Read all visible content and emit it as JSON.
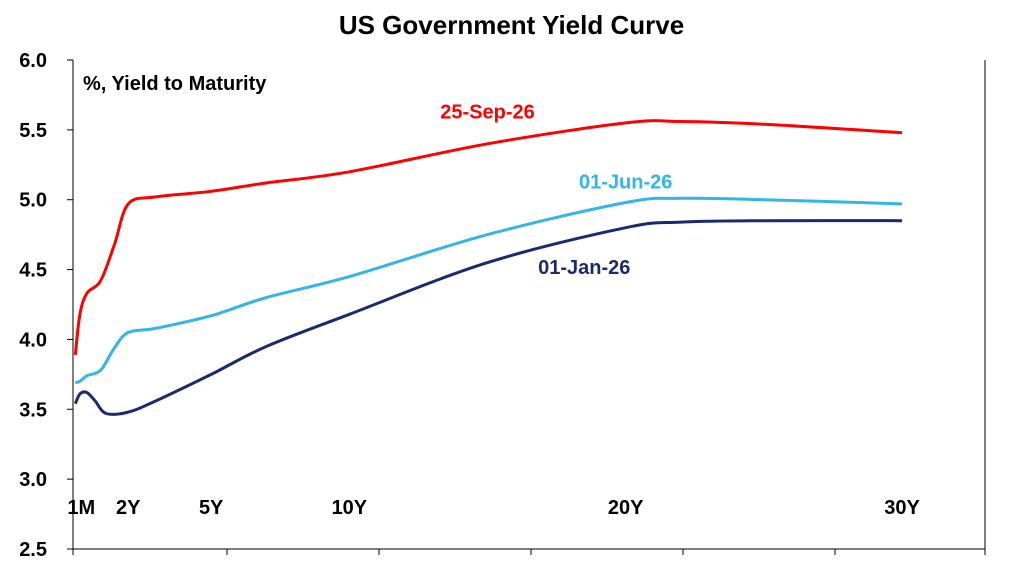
{
  "chart_data": {
    "type": "line",
    "title": "US Government Yield Curve",
    "ylabel": "%, Yield to Maturity",
    "xlabel": "",
    "ylim": [
      2.5,
      6.0
    ],
    "yticks": [
      "6.0",
      "5.5",
      "5.0",
      "4.5",
      "4.0",
      "3.5",
      "3.0",
      "2.5"
    ],
    "xlim": [
      0,
      33
    ],
    "xticks": [
      {
        "label": "1M",
        "value": 0.083
      },
      {
        "label": "2Y",
        "value": 2
      },
      {
        "label": "5Y",
        "value": 5
      },
      {
        "label": "10Y",
        "value": 10
      },
      {
        "label": "20Y",
        "value": 20
      },
      {
        "label": "30Y",
        "value": 30
      }
    ],
    "grid": false,
    "series": [
      {
        "name": "25-Sep-26",
        "color": "#ff0000",
        "points": [
          [
            0.083,
            3.89
          ],
          [
            0.25,
            4.18
          ],
          [
            0.5,
            4.33
          ],
          [
            1,
            4.42
          ],
          [
            1.5,
            4.68
          ],
          [
            2,
            4.97
          ],
          [
            3,
            5.02
          ],
          [
            5,
            5.06
          ],
          [
            7,
            5.12
          ],
          [
            10,
            5.2
          ],
          [
            15,
            5.4
          ],
          [
            20,
            5.55
          ],
          [
            22,
            5.56
          ],
          [
            25,
            5.54
          ],
          [
            30,
            5.48
          ]
        ]
      },
      {
        "name": "01-Jun-26",
        "color": "#33b5ea",
        "points": [
          [
            0.083,
            3.69
          ],
          [
            0.25,
            3.7
          ],
          [
            0.5,
            3.74
          ],
          [
            1,
            3.78
          ],
          [
            1.5,
            3.94
          ],
          [
            2,
            4.05
          ],
          [
            3,
            4.08
          ],
          [
            5,
            4.17
          ],
          [
            7,
            4.3
          ],
          [
            10,
            4.45
          ],
          [
            15,
            4.75
          ],
          [
            20,
            4.98
          ],
          [
            22,
            5.01
          ],
          [
            25,
            5.0
          ],
          [
            30,
            4.97
          ]
        ]
      },
      {
        "name": "01-Jan-26",
        "color": "#1a2a6c",
        "points": [
          [
            0.083,
            3.54
          ],
          [
            0.25,
            3.61
          ],
          [
            0.5,
            3.62
          ],
          [
            0.8,
            3.56
          ],
          [
            1.2,
            3.47
          ],
          [
            2,
            3.48
          ],
          [
            3,
            3.56
          ],
          [
            5,
            3.75
          ],
          [
            7,
            3.95
          ],
          [
            10,
            4.18
          ],
          [
            15,
            4.55
          ],
          [
            20,
            4.8
          ],
          [
            22,
            4.84
          ],
          [
            25,
            4.85
          ],
          [
            30,
            4.85
          ]
        ]
      }
    ],
    "labels": [
      {
        "text": "25-Sep-26",
        "x": 15,
        "y": 5.58
      },
      {
        "text": "01-Jun-26",
        "x": 20,
        "y": 5.08
      },
      {
        "text": "01-Jan-26",
        "x": 18.5,
        "y": 4.47
      }
    ]
  }
}
